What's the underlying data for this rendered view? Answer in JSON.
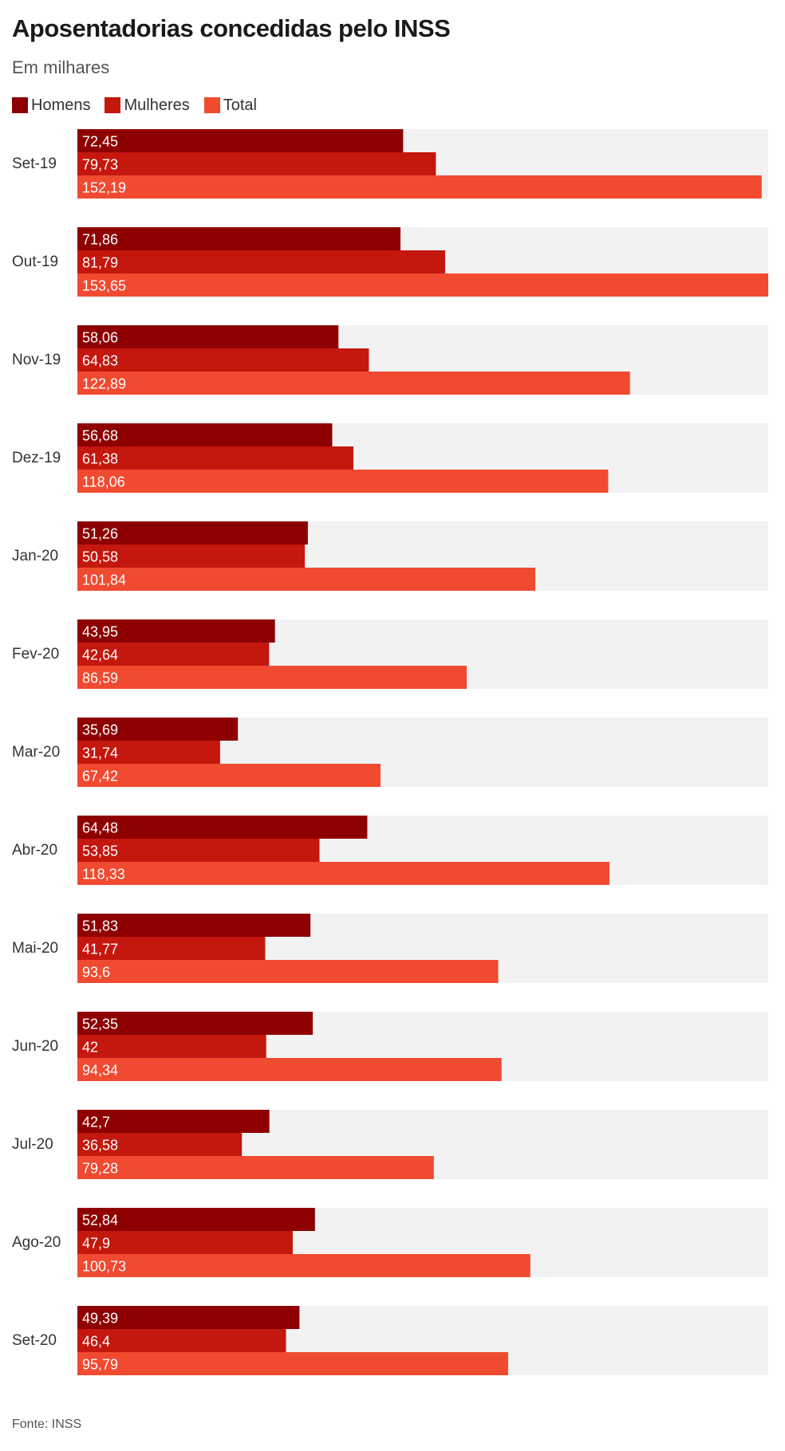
{
  "title": "Aposentadorias concedidas pelo INSS",
  "subtitle": "Em milhares",
  "source": "Fonte: INSS",
  "chart_data": {
    "type": "bar",
    "orientation": "horizontal",
    "categories": [
      "Set-19",
      "Out-19",
      "Nov-19",
      "Dez-19",
      "Jan-20",
      "Fev-20",
      "Mar-20",
      "Abr-20",
      "Mai-20",
      "Jun-20",
      "Jul-20",
      "Ago-20",
      "Set-20"
    ],
    "series": [
      {
        "name": "Homens",
        "color": "#8e0000",
        "values": [
          72.45,
          71.86,
          58.06,
          56.68,
          51.26,
          43.95,
          35.69,
          64.48,
          51.83,
          52.35,
          42.7,
          52.84,
          49.39
        ],
        "labels": [
          "72,45",
          "71,86",
          "58,06",
          "56,68",
          "51,26",
          "43,95",
          "35,69",
          "64,48",
          "51,83",
          "52,35",
          "42,7",
          "52,84",
          "49,39"
        ]
      },
      {
        "name": "Mulheres",
        "color": "#c4170e",
        "values": [
          79.73,
          81.79,
          64.83,
          61.38,
          50.58,
          42.64,
          31.74,
          53.85,
          41.77,
          42,
          36.58,
          47.9,
          46.4
        ],
        "labels": [
          "79,73",
          "81,79",
          "64,83",
          "61,38",
          "50,58",
          "42,64",
          "31,74",
          "53,85",
          "41,77",
          "42",
          "36,58",
          "47,9",
          "46,4"
        ]
      },
      {
        "name": "Total",
        "color": "#f04a30",
        "values": [
          152.19,
          153.65,
          122.89,
          118.06,
          101.84,
          86.59,
          67.42,
          118.33,
          93.6,
          94.34,
          79.28,
          100.73,
          95.79
        ],
        "labels": [
          "152,19",
          "153,65",
          "122,89",
          "118,06",
          "101,84",
          "86,59",
          "67,42",
          "118,33",
          "93,6",
          "94,34",
          "79,28",
          "100,73",
          "95,79"
        ]
      }
    ],
    "xlim": [
      0,
      153.65
    ],
    "track_color": "#f2f2f2",
    "legend_position": "top-left",
    "grid": false,
    "xlabel": "",
    "ylabel": ""
  }
}
